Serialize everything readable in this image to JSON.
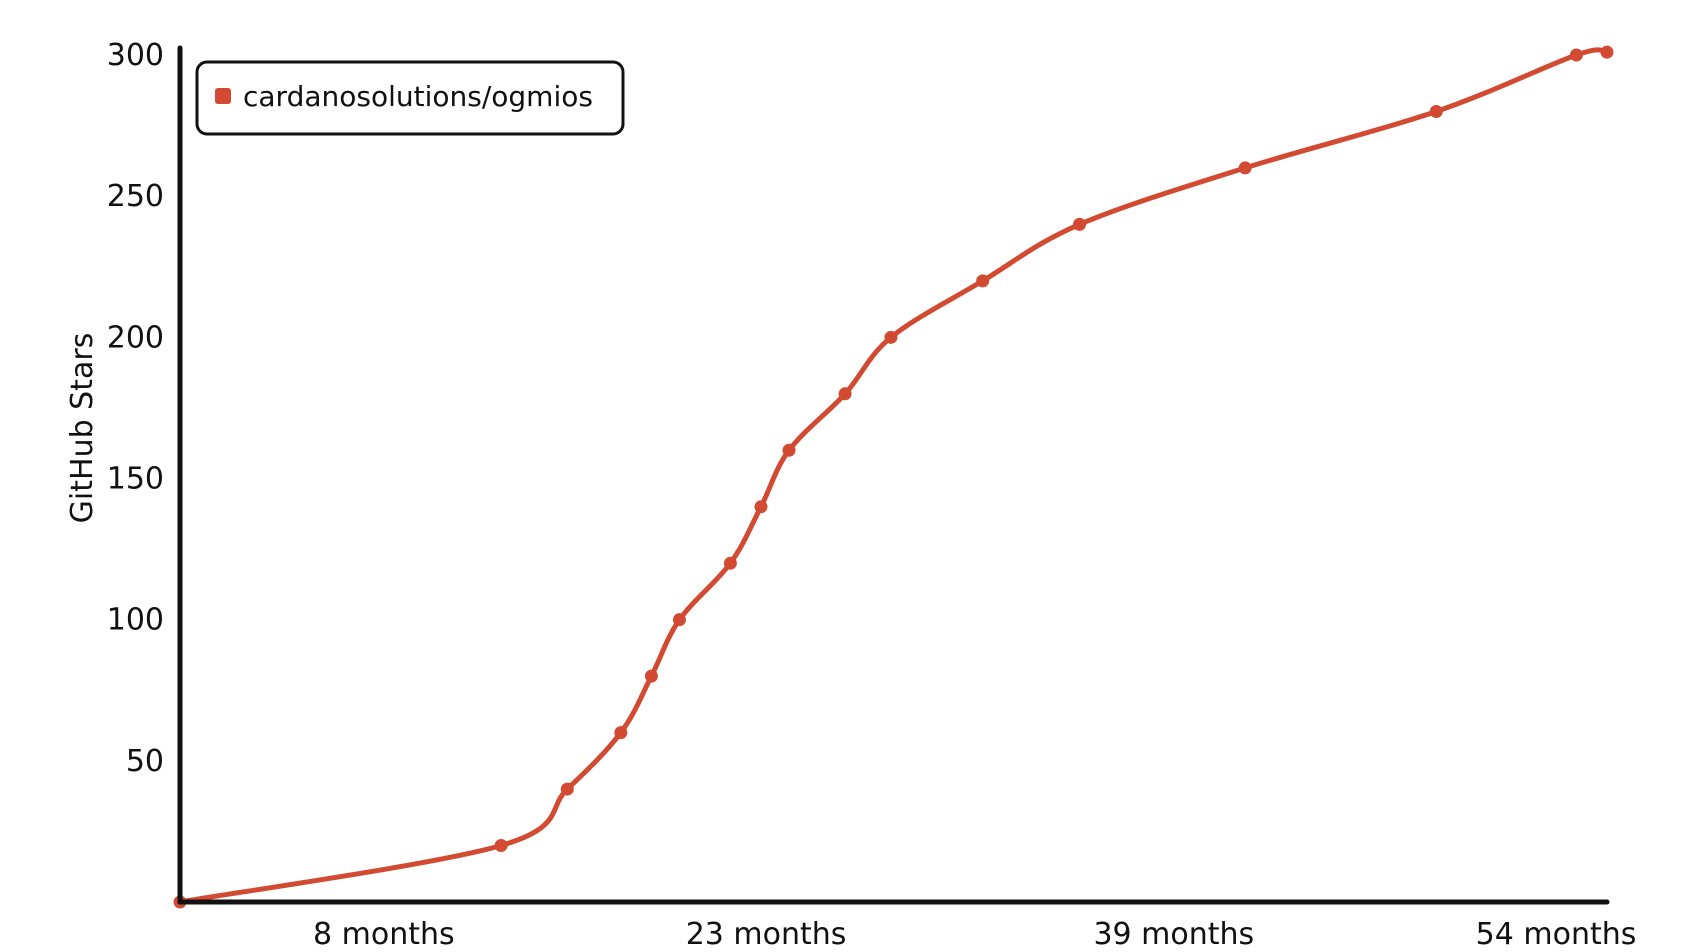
{
  "chart_data": {
    "type": "line",
    "ylabel": "GitHub Stars",
    "xlabel": "",
    "ylim": [
      0,
      300
    ],
    "yticks": [
      50,
      100,
      150,
      200,
      250,
      300
    ],
    "xticks": [
      8,
      23,
      39,
      54
    ],
    "xtick_labels": [
      "8 months",
      "23 months",
      "39 months",
      "54 months"
    ],
    "xlim": [
      0,
      56
    ],
    "legend": {
      "placement": "top-left",
      "entries": [
        "cardanosolutions/ogmios"
      ]
    },
    "grid": false,
    "series": [
      {
        "name": "cardanosolutions/ogmios",
        "color": "#d24a32",
        "x": [
          0,
          12.6,
          15.2,
          17.3,
          18.5,
          19.6,
          21.6,
          22.8,
          23.9,
          26.1,
          27.9,
          31.5,
          35.3,
          41.8,
          49.3,
          54.8,
          56
        ],
        "y": [
          0,
          20,
          40,
          60,
          80,
          100,
          120,
          140,
          160,
          180,
          200,
          220,
          240,
          260,
          280,
          300,
          301
        ]
      }
    ]
  }
}
